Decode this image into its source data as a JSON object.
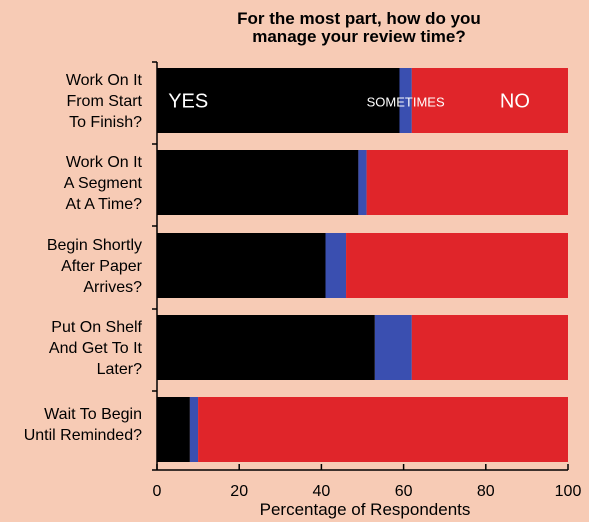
{
  "chart_data": {
    "type": "bar",
    "orientation": "horizontal",
    "stacked": true,
    "title_lines": [
      "For the most part, how do you",
      "manage your review time?"
    ],
    "xlabel": "Percentage of Respondents",
    "xlim": [
      0,
      100
    ],
    "xticks": [
      "0",
      "20",
      "40",
      "60",
      "80",
      "100"
    ],
    "categories": [
      [
        "Work On It",
        "From Start",
        "To Finish?"
      ],
      [
        "Work On It",
        "A Segment",
        "At A Time?"
      ],
      [
        "Begin Shortly",
        "After Paper",
        "Arrives?"
      ],
      [
        "Put On Shelf",
        "And Get To It",
        "Later?"
      ],
      [
        "Wait To Begin",
        "Until Reminded?"
      ]
    ],
    "series": [
      {
        "name": "YES",
        "color": "#000000",
        "values": [
          59,
          49,
          41,
          53,
          8
        ]
      },
      {
        "name": "SOMETIMES",
        "color": "#3a4fb0",
        "values": [
          3,
          2,
          5,
          9,
          2
        ]
      },
      {
        "name": "NO",
        "color": "#e0252a",
        "values": [
          38,
          49,
          54,
          38,
          90
        ]
      }
    ],
    "series_labels_on_first_bar": true,
    "grid": false,
    "legend": "none"
  }
}
